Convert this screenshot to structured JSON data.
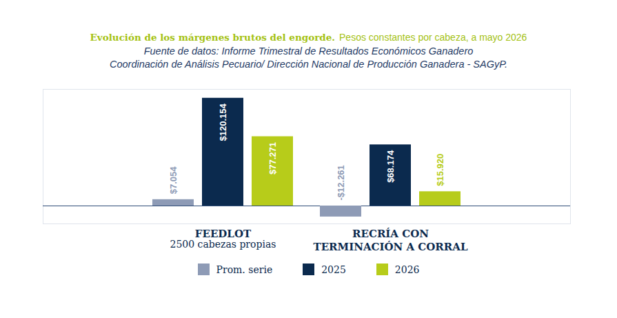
{
  "chart_data": {
    "type": "bar",
    "title": "Evolución de los márgenes brutos del engorde.",
    "subtitle": "Pesos constantes por cabeza, a mayo 2026",
    "source": [
      "Fuente de datos: Informe Trimestral de Resultados Económicos Ganadero",
      "Coordinación de Análisis Pecuario/ Dirección Nacional de Producción Ganadera - SAGyP."
    ],
    "categories": [
      "FEEDLOT",
      "RECRÍA CON TERMINACIÓN A CORRAL"
    ],
    "annotations": [
      {
        "text": "2500 cabezas propias",
        "category": "FEEDLOT"
      }
    ],
    "series": [
      {
        "name": "Prom. serie",
        "color": "#8e9bb6",
        "values": [
          7054,
          -12261
        ],
        "value_labels": [
          "$7.054",
          "-$12.261"
        ]
      },
      {
        "name": "2025",
        "color": "#0b2a4e",
        "values": [
          120154,
          68174
        ],
        "value_labels": [
          "$120.154",
          "$68.174"
        ]
      },
      {
        "name": "2026",
        "color": "#b7cc1a",
        "values": [
          77271,
          15920
        ],
        "value_labels": [
          "$77.271",
          "$15.920"
        ]
      }
    ],
    "ylim": [
      -20000,
      130000
    ],
    "yticks": [
      0
    ],
    "tick_labels": "x",
    "data_labels": true,
    "legend": "bottom"
  }
}
